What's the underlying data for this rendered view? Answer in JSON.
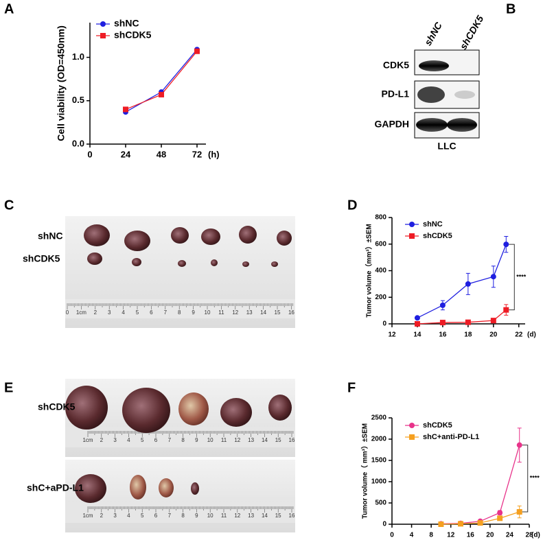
{
  "panel_labels": [
    "A",
    "B",
    "C",
    "D",
    "E",
    "F"
  ],
  "blot": {
    "columns": [
      "shNC",
      "shCDK5"
    ],
    "rows": [
      "CDK5",
      "PD-L1",
      "GAPDH"
    ],
    "footer": "LLC"
  },
  "photo_c": {
    "rows": [
      "shNC",
      "shCDK5"
    ],
    "ruler_labels": [
      "0",
      "1cm",
      "2",
      "3",
      "4",
      "5",
      "6",
      "7",
      "8",
      "9",
      "10",
      "11",
      "12",
      "13",
      "14",
      "15",
      "16"
    ]
  },
  "photo_e": {
    "rows": [
      "shCDK5",
      "shC+aPD-L1"
    ],
    "ruler_labels": [
      "1cm",
      "2",
      "3",
      "4",
      "5",
      "6",
      "7",
      "8",
      "9",
      "10",
      "11",
      "12",
      "13",
      "14",
      "15",
      "16"
    ]
  },
  "chart_data": [
    {
      "type": "line",
      "y_label": "Cell viability (OD=450nm)",
      "x_unit": "(h)",
      "x": [
        24,
        48,
        72
      ],
      "xlim": [
        0,
        78
      ],
      "xticks": [
        0,
        24,
        48,
        72
      ],
      "ylim": [
        0,
        1.4
      ],
      "yticks": [
        {
          "value": 0,
          "label": "0.0"
        },
        {
          "value": 0.5,
          "label": "0.5"
        },
        {
          "value": 1.0,
          "label": "1.0"
        }
      ],
      "series": [
        {
          "name": "shNC",
          "color": "#1f1fe0",
          "marker": "circle",
          "values": [
            0.37,
            0.6,
            1.09
          ]
        },
        {
          "name": "shCDK5",
          "color": "#ee1c25",
          "marker": "square",
          "values": [
            0.4,
            0.57,
            1.07
          ]
        }
      ]
    },
    {
      "type": "line",
      "y_label": "Tumor volume（mm³）±SEM",
      "x_unit": "(d)",
      "x": [
        14,
        16,
        18,
        20,
        21
      ],
      "xlim": [
        12,
        22.5
      ],
      "xticks": [
        12,
        14,
        16,
        18,
        20,
        22
      ],
      "ylim": [
        0,
        800
      ],
      "yticks": [
        0,
        200,
        400,
        600,
        800
      ],
      "annotation": "****",
      "series": [
        {
          "name": "shNC",
          "color": "#1f1fe0",
          "marker": "circle",
          "values": [
            45,
            140,
            300,
            355,
            598
          ],
          "errors": [
            10,
            35,
            80,
            80,
            60
          ]
        },
        {
          "name": "shCDK5",
          "color": "#ee1c25",
          "marker": "square",
          "values": [
            0,
            10,
            12,
            25,
            105
          ],
          "errors": [
            0,
            5,
            5,
            10,
            40
          ]
        }
      ]
    },
    {
      "type": "line",
      "y_label": "Tumor volume（ mm³）±SEM",
      "x_unit": "(d)",
      "x": [
        10,
        14,
        18,
        22,
        26
      ],
      "xlim": [
        0,
        28
      ],
      "xticks": [
        0,
        4,
        8,
        12,
        16,
        20,
        24,
        28
      ],
      "ylim": [
        0,
        2500
      ],
      "yticks": [
        0,
        500,
        1000,
        1500,
        2000,
        2500
      ],
      "annotation": "****",
      "series": [
        {
          "name": "shCDK5",
          "color": "#e8338a",
          "marker": "circle",
          "values": [
            10,
            20,
            70,
            270,
            1860
          ],
          "errors": [
            5,
            10,
            20,
            50,
            400
          ]
        },
        {
          "name": "shC+anti-PD-L1",
          "color": "#f5a020",
          "marker": "square",
          "values": [
            0,
            10,
            30,
            140,
            290
          ],
          "errors": [
            0,
            5,
            10,
            30,
            140
          ]
        }
      ]
    }
  ]
}
